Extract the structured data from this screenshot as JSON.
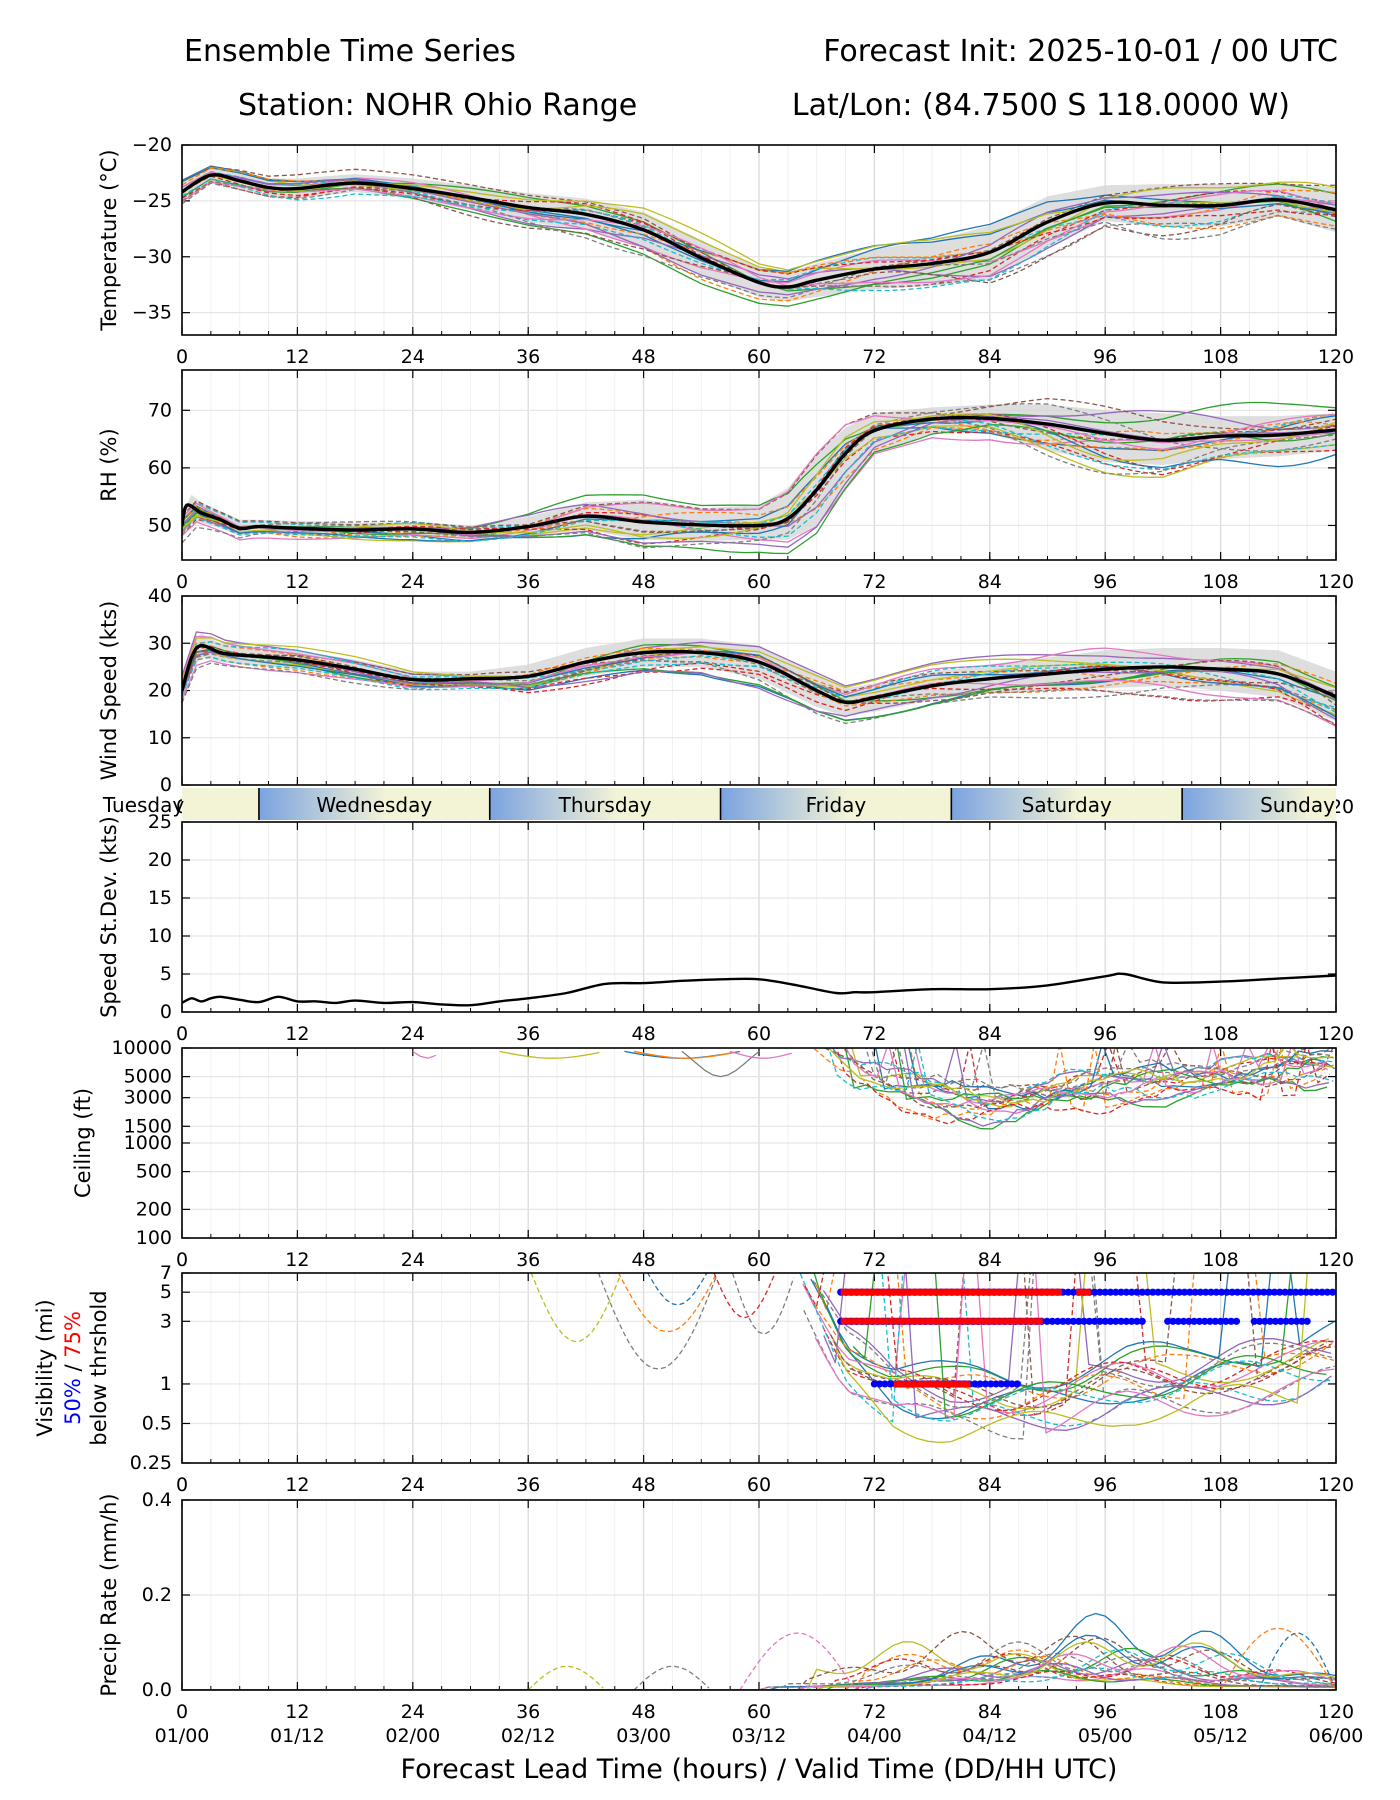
{
  "header": {
    "title_left": "Ensemble Time Series",
    "title_right": "Forecast Init: 2025-10-01 / 00 UTC",
    "station": "Station: NOHR Ohio Range",
    "latlon": "Lat/Lon: (84.7500 S 118.0000 W)"
  },
  "colors": {
    "mean": "#000000",
    "spread": "#d3d3d3",
    "pct50": "#0000ff",
    "pct75": "#ff0000",
    "members": [
      "#1f77b4",
      "#ff7f0e",
      "#2ca02c",
      "#d62728",
      "#9467bd",
      "#8c564b",
      "#e377c2",
      "#7f7f7f",
      "#bcbd22",
      "#17becf"
    ],
    "day_band_left": "#7ba3e0",
    "day_band_right": "#f3f3d6"
  },
  "x_axis": {
    "ticks": [
      0,
      12,
      24,
      36,
      48,
      60,
      72,
      84,
      96,
      108,
      120
    ],
    "tick_labels": [
      "0",
      "12",
      "24",
      "36",
      "48",
      "60",
      "72",
      "84",
      "96",
      "108",
      "120"
    ],
    "valid_labels": [
      "01/00",
      "01/12",
      "02/00",
      "02/12",
      "03/00",
      "03/12",
      "04/00",
      "04/12",
      "05/00",
      "05/12",
      "06/00"
    ],
    "xlabel": "Forecast Lead Time (hours) / Valid Time (DD/HH UTC)"
  },
  "day_strip": {
    "days": [
      {
        "name": "Tuesday",
        "start": -16,
        "end": 8
      },
      {
        "name": "Wednesday",
        "start": 8,
        "end": 32
      },
      {
        "name": "Thursday",
        "start": 32,
        "end": 56
      },
      {
        "name": "Friday",
        "start": 56,
        "end": 80
      },
      {
        "name": "Saturday",
        "start": 80,
        "end": 104
      },
      {
        "name": "Sunday",
        "start": 104,
        "end": 128
      }
    ]
  },
  "chart_data": [
    {
      "type": "line",
      "ylabel": "Temperature (°C)",
      "ylim": [
        -37,
        -20
      ],
      "yticks": [
        -20,
        -25,
        -30,
        -35
      ],
      "ytick_labels": [
        "−20",
        "−25",
        "−30",
        "−35"
      ],
      "mean": {
        "x": [
          0,
          3,
          6,
          9,
          12,
          18,
          24,
          30,
          36,
          42,
          48,
          54,
          60,
          63,
          66,
          72,
          78,
          84,
          90,
          96,
          102,
          108,
          114,
          120
        ],
        "y": [
          -24.2,
          -22.7,
          -23.2,
          -23.8,
          -23.9,
          -23.4,
          -23.9,
          -24.7,
          -25.6,
          -26.2,
          -27.6,
          -30.1,
          -32.3,
          -32.7,
          -32.1,
          -31.1,
          -30.6,
          -29.6,
          -26.9,
          -25.2,
          -25.4,
          -25.4,
          -24.9,
          -25.8
        ]
      },
      "spread_upper": [
        -23.3,
        -22.0,
        -22.4,
        -23.0,
        -23.0,
        -22.6,
        -23.0,
        -23.6,
        -24.3,
        -24.8,
        -26.0,
        -28.5,
        -31.0,
        -31.4,
        -30.6,
        -29.3,
        -28.6,
        -27.2,
        -24.6,
        -23.6,
        -23.5,
        -23.5,
        -23.4,
        -23.8
      ],
      "spread_lower": [
        -25.1,
        -23.4,
        -24.0,
        -24.6,
        -24.8,
        -24.2,
        -24.8,
        -25.8,
        -26.9,
        -27.6,
        -29.2,
        -31.7,
        -33.6,
        -34.0,
        -33.6,
        -32.9,
        -32.6,
        -32.0,
        -29.2,
        -26.8,
        -27.3,
        -27.3,
        -26.4,
        -27.8
      ],
      "members": 20,
      "member_amp": 1.6
    },
    {
      "type": "line",
      "ylabel": "RH (%)",
      "ylim": [
        44,
        77
      ],
      "yticks": [
        50,
        60,
        70
      ],
      "ytick_labels": [
        "50",
        "60",
        "70"
      ],
      "mean": {
        "x": [
          0,
          0.5,
          2,
          4,
          6,
          8,
          12,
          18,
          24,
          30,
          36,
          42,
          48,
          54,
          60,
          63,
          66,
          69,
          72,
          78,
          84,
          90,
          96,
          102,
          108,
          114,
          120
        ],
        "y": [
          50,
          53.5,
          52.2,
          51,
          49.5,
          49.8,
          49.5,
          49.2,
          49.4,
          48.8,
          49.8,
          51.6,
          50.6,
          50.1,
          50.0,
          51.2,
          56.2,
          62.5,
          66.5,
          68.5,
          68.6,
          67.6,
          66.0,
          64.8,
          65.5,
          65.7,
          66.6
        ]
      },
      "spread_upper": [
        52,
        56,
        54,
        52.5,
        51,
        51,
        50.8,
        50.5,
        50.6,
        50.0,
        51.5,
        54.0,
        54.5,
        53.0,
        53.5,
        56.5,
        62.5,
        67.0,
        69.5,
        70.5,
        71.0,
        71.0,
        70.0,
        69.5,
        69.0,
        69.0,
        69.5
      ],
      "spread_lower": [
        48,
        51,
        50.5,
        49.5,
        48.2,
        48.6,
        48.2,
        47.9,
        48.2,
        47.6,
        48.2,
        49.2,
        47.5,
        47.3,
        47.5,
        47.5,
        50.0,
        56.0,
        62.5,
        66.0,
        66.0,
        63.0,
        61.0,
        60.5,
        61.5,
        62.0,
        63.0
      ],
      "members": 20,
      "member_amp": 4.0
    },
    {
      "type": "line",
      "ylabel": "Wind Speed (kts)",
      "ylim": [
        0,
        40
      ],
      "yticks": [
        0,
        10,
        20,
        30,
        40
      ],
      "ytick_labels": [
        "0",
        "10",
        "20",
        "30",
        "40"
      ],
      "mean": {
        "x": [
          0,
          1,
          2,
          4,
          6,
          12,
          18,
          24,
          30,
          36,
          42,
          48,
          54,
          60,
          66,
          69,
          72,
          78,
          84,
          90,
          96,
          102,
          108,
          114,
          120
        ],
        "y": [
          20,
          27,
          29.5,
          28,
          27.5,
          26.5,
          24.5,
          22.3,
          22.5,
          23,
          26,
          28,
          28,
          26,
          20,
          17.5,
          18.5,
          21,
          22.5,
          23.5,
          24.5,
          25,
          24.5,
          23.5,
          18.7
        ]
      },
      "spread_upper": [
        22,
        30,
        32,
        30,
        29.5,
        28.5,
        26.5,
        24,
        24,
        25.5,
        29,
        31,
        31,
        29.5,
        23.5,
        20.5,
        21.5,
        24,
        25.5,
        27,
        28.5,
        29,
        29,
        28.5,
        24
      ],
      "spread_lower": [
        18,
        24,
        27,
        26,
        25.5,
        24.5,
        22.5,
        20.6,
        21,
        20.5,
        23,
        25,
        25,
        22.5,
        16.5,
        14.5,
        15.5,
        18,
        19.5,
        20,
        20.5,
        21,
        20,
        18.5,
        13.5
      ],
      "members": 20,
      "member_amp": 3.5
    },
    {
      "type": "line",
      "ylabel": "Speed St.Dev. (kts)",
      "ylim": [
        0,
        25
      ],
      "yticks": [
        0,
        5,
        10,
        15,
        20,
        25
      ],
      "ytick_labels": [
        "0",
        "5",
        "10",
        "15",
        "20",
        "25"
      ],
      "series": [
        {
          "name": "speed st.dev.",
          "x": [
            0,
            1,
            2,
            3,
            4,
            6,
            8,
            10,
            12,
            14,
            16,
            18,
            21,
            24,
            27,
            30,
            33,
            36,
            40,
            44,
            48,
            52,
            56,
            60,
            64,
            68,
            70,
            72,
            78,
            84,
            90,
            96,
            98,
            102,
            108,
            114,
            120
          ],
          "y": [
            1.2,
            1.8,
            1.4,
            1.8,
            2.0,
            1.6,
            1.3,
            2.0,
            1.4,
            1.4,
            1.2,
            1.5,
            1.2,
            1.3,
            1.0,
            0.9,
            1.4,
            1.8,
            2.5,
            3.7,
            3.8,
            4.1,
            4.3,
            4.3,
            3.5,
            2.5,
            2.6,
            2.6,
            3.0,
            3.0,
            3.5,
            4.7,
            5.0,
            3.9,
            4.0,
            4.4,
            4.8
          ]
        }
      ]
    },
    {
      "type": "line",
      "ylabel": "Ceiling (ft)",
      "yscale": "log",
      "ylim": [
        100,
        10000
      ],
      "yticks": [
        100,
        200,
        500,
        1000,
        1500,
        3000,
        5000,
        10000
      ],
      "ytick_labels": [
        "100",
        "200",
        "500",
        "1000",
        "1500",
        "3000",
        "5000",
        "10000"
      ],
      "members": 20
    },
    {
      "type": "line",
      "ylabel": "Visibility (mi)",
      "ylabel_sub": "below thrshold",
      "ylabel_pct50": "50%",
      "ylabel_sep": " / ",
      "ylabel_pct75": "75%",
      "yscale": "log",
      "ylim": [
        0.25,
        7
      ],
      "yticks": [
        0.25,
        0.5,
        1,
        3,
        5,
        7
      ],
      "ytick_labels": [
        "0.25",
        "0.5",
        "1",
        "3",
        "5",
        "7"
      ],
      "threshold_bars": [
        {
          "level": 5,
          "pct50": [
            [
              68.5,
              120
            ]
          ],
          "pct75": [
            [
              68.5,
              91.5
            ],
            [
              93,
              94.5
            ]
          ]
        },
        {
          "level": 3,
          "pct50": [
            [
              68.5,
              100
            ],
            [
              102.5,
              110
            ],
            [
              111.5,
              117.5
            ]
          ],
          "pct75": [
            [
              68.5,
              89.5
            ]
          ]
        },
        {
          "level": 1,
          "pct50": [
            [
              72,
              87
            ]
          ],
          "pct75": [
            [
              74,
              82
            ]
          ]
        }
      ],
      "members": 20
    },
    {
      "type": "line",
      "ylabel": "Precip Rate (mm/h)",
      "ylim": [
        0,
        0.4
      ],
      "yticks": [
        0.0,
        0.2,
        0.4
      ],
      "ytick_labels": [
        "0.0",
        "0.2",
        "0.4"
      ],
      "members": 20
    }
  ]
}
